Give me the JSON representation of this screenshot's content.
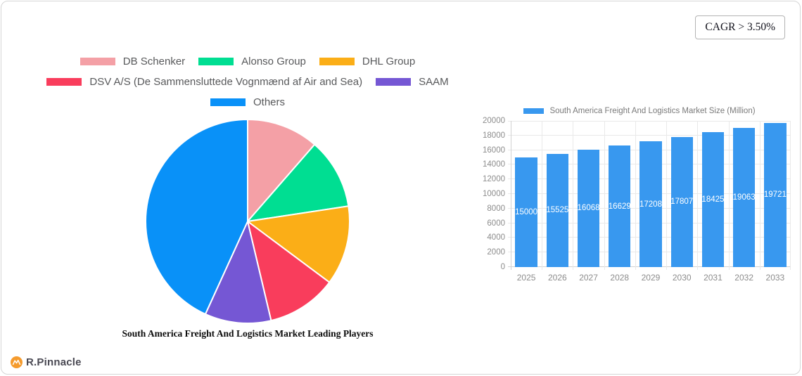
{
  "card": {
    "cagr_label": "CAGR > 3.50%"
  },
  "brand": {
    "name": "R.Pinnacle",
    "icon": "pulse-line-icon",
    "icon_color": "#f59b2d"
  },
  "chart_data": [
    {
      "type": "pie",
      "title": "South America Freight And Logistics Market Leading Players",
      "labels": [
        "DB Schenker",
        "Alonso Group",
        "DHL Group",
        "DSV A/S (De Sammensluttede Vognmænd af Air and Sea)",
        "SAAM",
        "Others"
      ],
      "values": [
        11.4,
        11.2,
        12.6,
        11.1,
        10.5,
        43.2
      ],
      "colors": [
        "#f4a0a6",
        "#00de92",
        "#fbae17",
        "#f93d5c",
        "#7557d4",
        "#0991f8"
      ],
      "legend_position": "top",
      "legend_rows": [
        [
          0,
          1,
          2
        ],
        [
          3,
          4
        ],
        [
          5
        ]
      ],
      "start_angle_deg": 0,
      "direction": "clockwise",
      "slice_border_color": "#ffffff"
    },
    {
      "type": "bar",
      "categories": [
        "2025",
        "2026",
        "2027",
        "2028",
        "2029",
        "2030",
        "2031",
        "2032",
        "2033"
      ],
      "series": [
        {
          "name": "South America Freight And Logistics Market Size (Million)",
          "values": [
            15000,
            15525,
            16068,
            16629,
            17208,
            17807,
            18425,
            19063,
            19721
          ]
        }
      ],
      "bar_color": "#3898ef",
      "value_label_color": "#ffffff",
      "value_label_position": "inside-middle",
      "ylim": [
        0,
        20000
      ],
      "yticks": [
        0,
        2000,
        4000,
        6000,
        8000,
        10000,
        12000,
        14000,
        16000,
        18000,
        20000
      ],
      "grid": true,
      "legend_position": "top"
    }
  ]
}
